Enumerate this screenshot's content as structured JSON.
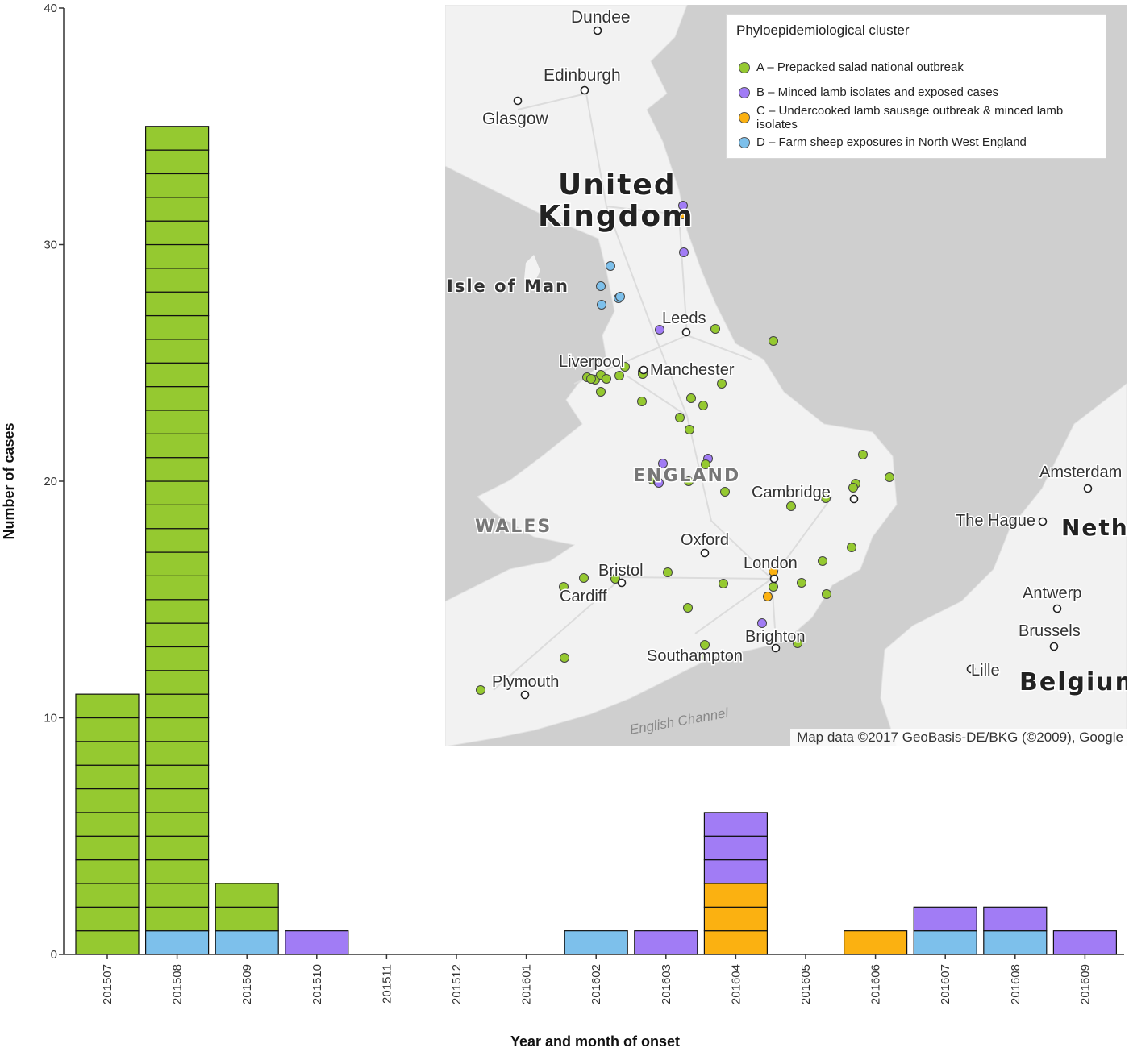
{
  "chart_data": {
    "type": "bar",
    "stacked": true,
    "categories": [
      "201507",
      "201508",
      "201509",
      "201510",
      "201511",
      "201512",
      "201601",
      "201602",
      "201603",
      "201604",
      "201605",
      "201606",
      "201607",
      "201608",
      "201609"
    ],
    "series": [
      {
        "name": "D – Farm sheep exposures in North West England",
        "color": "#7dc0eb",
        "values": [
          0,
          1,
          1,
          0,
          0,
          0,
          0,
          1,
          0,
          0,
          0,
          0,
          1,
          1,
          0
        ]
      },
      {
        "name": "C – Undercooked lamb sausage outbreak & minced lamb isolates",
        "color": "#fbb111",
        "values": [
          0,
          0,
          0,
          0,
          0,
          0,
          0,
          0,
          0,
          3,
          0,
          1,
          0,
          0,
          0
        ]
      },
      {
        "name": "B – Minced lamb isolates and exposed cases",
        "color": "#a17cf5",
        "values": [
          0,
          0,
          0,
          1,
          0,
          0,
          0,
          0,
          1,
          3,
          0,
          0,
          1,
          1,
          1
        ]
      },
      {
        "name": "A – Prepacked salad national outbreak",
        "color": "#95c930",
        "values": [
          11,
          34,
          2,
          0,
          0,
          0,
          0,
          0,
          0,
          0,
          0,
          0,
          0,
          0,
          0
        ]
      }
    ],
    "xlabel": "Year and month of onset",
    "ylabel": "Number of cases",
    "ylim": [
      0,
      40
    ],
    "yticks": [
      0,
      10,
      20,
      30,
      40
    ],
    "grid": false,
    "legend_location": "inset map, top-right"
  },
  "map": {
    "legend_title": "Phyloepidemiological cluster",
    "legend_items": [
      {
        "label": "A – Prepacked salad national outbreak",
        "color": "#95c930"
      },
      {
        "label": "B – Minced lamb isolates and exposed cases",
        "color": "#a17cf5"
      },
      {
        "label": "C – Undercooked lamb sausage outbreak & minced lamb isolates",
        "color": "#fbb111"
      },
      {
        "label": "D – Farm sheep exposures in North West England",
        "color": "#7dc0eb"
      }
    ],
    "attribution": "Map data ©2017 GeoBasis-DE/BKG (©2009), Google",
    "country_labels": [
      "United",
      "Kingdom",
      "ENGLAND",
      "WALES",
      "Isle of Man",
      "Belgium",
      "Neth"
    ],
    "place_labels": [
      "Dundee",
      "Edinburgh",
      "Glasgow",
      "Leeds",
      "Liverpool",
      "Manchester",
      "Cambridge",
      "Oxford",
      "London",
      "Bristol",
      "Cardiff",
      "Brighton",
      "Southampton",
      "Plymouth",
      "Amsterdam",
      "The Hague",
      "Antwerp",
      "Brussels",
      "Lille"
    ],
    "water_labels": [
      "English Channel"
    ]
  }
}
